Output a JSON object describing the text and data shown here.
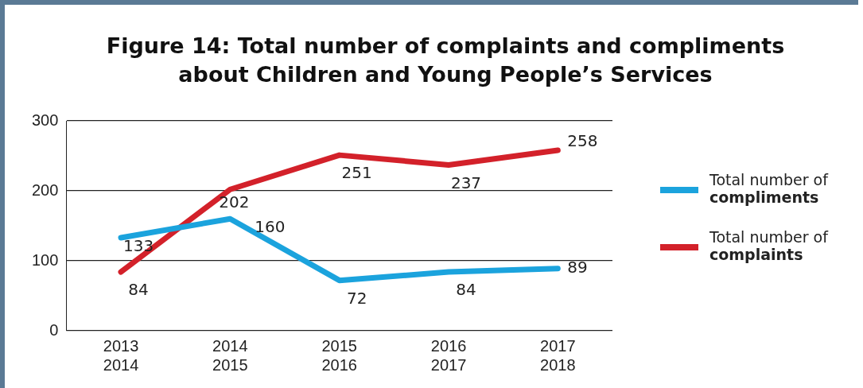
{
  "chart_data": {
    "type": "line",
    "title": "Figure 14: Total number of complaints and compliments about Children and Young People’s Services",
    "categories": [
      "2013\n2014",
      "2014\n2015",
      "2015\n2016",
      "2016\n2017",
      "2017\n2018"
    ],
    "series": [
      {
        "name": "Total number of compliments",
        "color": "#1ba3dd",
        "values": [
          133,
          160,
          72,
          84,
          89
        ]
      },
      {
        "name": "Total number of complaints",
        "color": "#d3212a",
        "values": [
          84,
          202,
          251,
          237,
          258
        ]
      }
    ],
    "ylim": [
      0,
      300
    ],
    "yticks": [
      0,
      100,
      200,
      300
    ],
    "grid": "y",
    "legend": "right",
    "data_labels": true,
    "marker": "none",
    "line_style": "solid"
  }
}
